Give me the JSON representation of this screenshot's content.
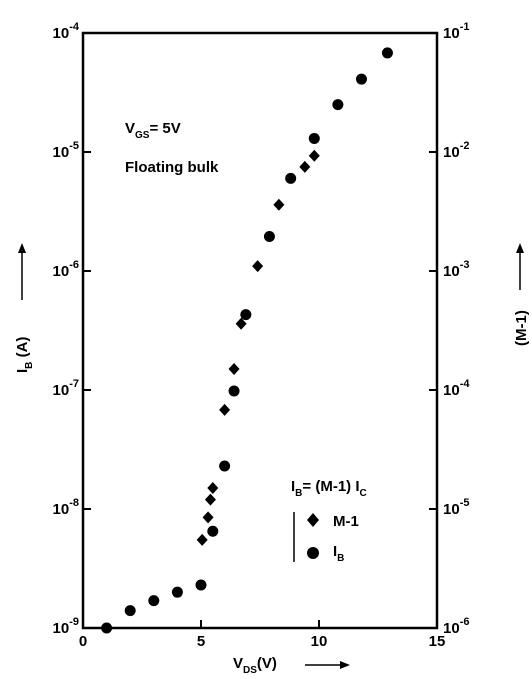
{
  "chart_data": {
    "type": "scatter",
    "title": "",
    "xlabel": {
      "main": "V",
      "sub": "DS",
      "tail": "(V)"
    },
    "ylabel_left": {
      "main": "I",
      "sub": "B",
      "tail": " (A)"
    },
    "ylabel_right": "(M-1)",
    "xlim": [
      0,
      15
    ],
    "ylim_left": [
      1e-09,
      0.0001
    ],
    "ylim_right": [
      1e-06,
      0.1
    ],
    "y_scale": "log",
    "grid": false,
    "x_ticks": [
      "0",
      "5",
      "10",
      "15"
    ],
    "y_ticks_left": [
      {
        "base": "10",
        "exp": "-9"
      },
      {
        "base": "10",
        "exp": "-8"
      },
      {
        "base": "10",
        "exp": "-7"
      },
      {
        "base": "10",
        "exp": "-6"
      },
      {
        "base": "10",
        "exp": "-5"
      },
      {
        "base": "10",
        "exp": "-4"
      }
    ],
    "y_ticks_right": [
      {
        "base": "10",
        "exp": "-6"
      },
      {
        "base": "10",
        "exp": "-5"
      },
      {
        "base": "10",
        "exp": "-4"
      },
      {
        "base": "10",
        "exp": "-3"
      },
      {
        "base": "10",
        "exp": "-2"
      },
      {
        "base": "10",
        "exp": "-1"
      }
    ],
    "annotations": {
      "vgs": {
        "main": "V",
        "sub": "GS",
        "tail": "= 5V"
      },
      "bulk": "Floating bulk",
      "relation": {
        "a": "I",
        "a_sub": "B",
        "b": "= (M-1) I",
        "b_sub": "C"
      }
    },
    "legend_position": "bottom-right",
    "series": [
      {
        "name": "M-1",
        "marker": "diamond",
        "axis": "right",
        "x": [
          5.05,
          5.3,
          5.4,
          5.5,
          6.0,
          6.4,
          6.7,
          7.4,
          8.3,
          9.4,
          9.8
        ],
        "y": [
          5.5e-06,
          8.5e-06,
          1.2e-05,
          1.5e-05,
          6.8e-05,
          0.00015,
          0.00036,
          0.0011,
          0.0036,
          0.0075,
          0.0093
        ]
      },
      {
        "name": "I",
        "name_sub": "B",
        "marker": "circle",
        "axis": "left",
        "x": [
          1.0,
          2.0,
          3.0,
          4.0,
          5.0,
          5.5,
          6.0,
          6.4,
          6.9,
          7.9,
          8.8,
          9.8,
          10.8,
          11.8,
          12.9
        ],
        "y": [
          1e-09,
          1.4e-09,
          1.7e-09,
          2e-09,
          2.3e-09,
          6.5e-09,
          2.3e-08,
          9.8e-08,
          4.3e-07,
          1.95e-06,
          6e-06,
          1.3e-05,
          2.5e-05,
          4.1e-05,
          6.8e-05
        ]
      }
    ]
  }
}
